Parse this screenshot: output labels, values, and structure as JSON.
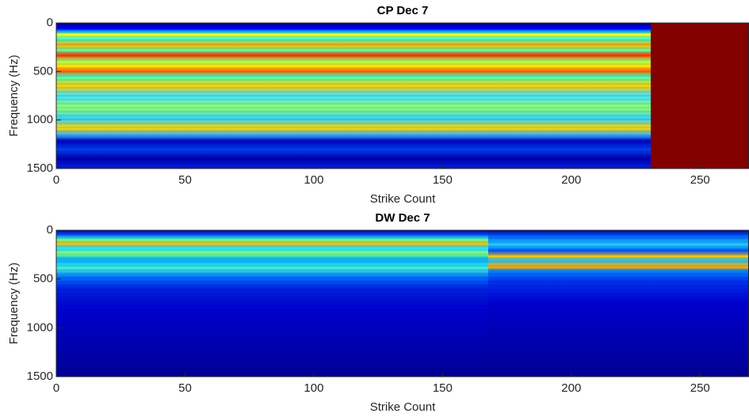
{
  "chart_data": [
    {
      "type": "heatmap",
      "title": "CP Dec 7",
      "xlabel": "Strike Count",
      "ylabel": "Frequency (Hz)",
      "xlim": [
        0,
        269
      ],
      "ylim": [
        0,
        1500
      ],
      "y_reversed": true,
      "xticks": [
        0,
        50,
        100,
        150,
        200,
        250
      ],
      "yticks": [
        0,
        500,
        1000,
        1500
      ]
    },
    {
      "type": "heatmap",
      "title": "DW Dec 7",
      "xlabel": "Strike Count",
      "ylabel": "Frequency (Hz)",
      "xlim": [
        0,
        269
      ],
      "ylim": [
        0,
        1500
      ],
      "y_reversed": true,
      "xticks": [
        0,
        50,
        100,
        150,
        200,
        250
      ],
      "yticks": [
        0,
        500,
        1000,
        1500
      ]
    }
  ]
}
